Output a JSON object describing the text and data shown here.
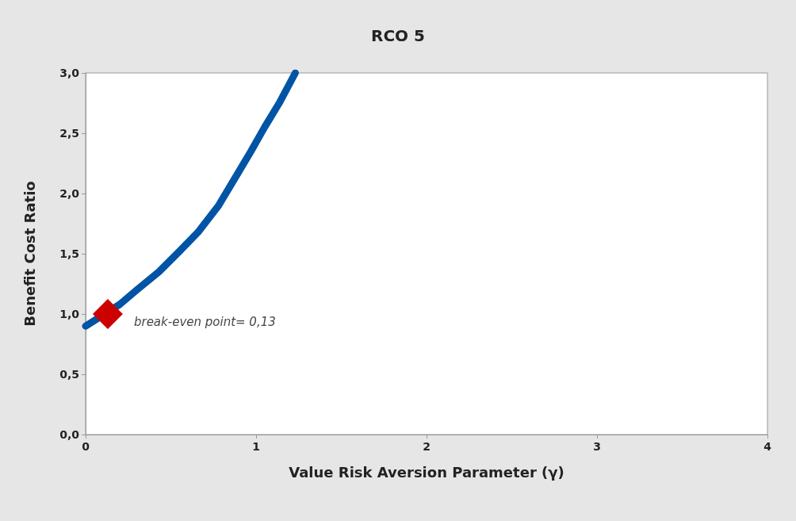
{
  "chart_data": {
    "type": "line",
    "title": "RCO 5",
    "xlabel": "Value Risk Aversion Parameter (γ)",
    "ylabel": "Benefit Cost Ratio",
    "xlim": [
      0,
      4
    ],
    "xticks": [
      0,
      1,
      2,
      3,
      4
    ],
    "ylim": [
      0,
      3
    ],
    "yticks": [
      {
        "value": 0,
        "label": "0,0"
      },
      {
        "value": 0.5,
        "label": "0,5"
      },
      {
        "value": 1,
        "label": "1,0"
      },
      {
        "value": 1.5,
        "label": "1,5"
      },
      {
        "value": 2,
        "label": "2,0"
      },
      {
        "value": 2.5,
        "label": "2,5"
      },
      {
        "value": 3,
        "label": "3,0"
      }
    ],
    "grid": false,
    "line_style": "solid",
    "series": [
      {
        "color": "#0054a6",
        "x": [
          0,
          0.2,
          0.3,
          0.43,
          0.55,
          0.66,
          0.78,
          0.89,
          0.97,
          1.05,
          1.14,
          1.23
        ],
        "values": [
          0.9,
          1.08,
          1.2,
          1.35,
          1.52,
          1.68,
          1.9,
          2.16,
          2.35,
          2.55,
          2.76,
          3.0
        ]
      },
      {
        "type": "scatter",
        "marker": "diamond",
        "color": "#cc0000",
        "x": [
          0.13
        ],
        "values": [
          1.0
        ]
      }
    ],
    "annotations": [
      {
        "text": "break-even point= 0,13",
        "x": 0.13,
        "y": 1.0
      }
    ]
  }
}
